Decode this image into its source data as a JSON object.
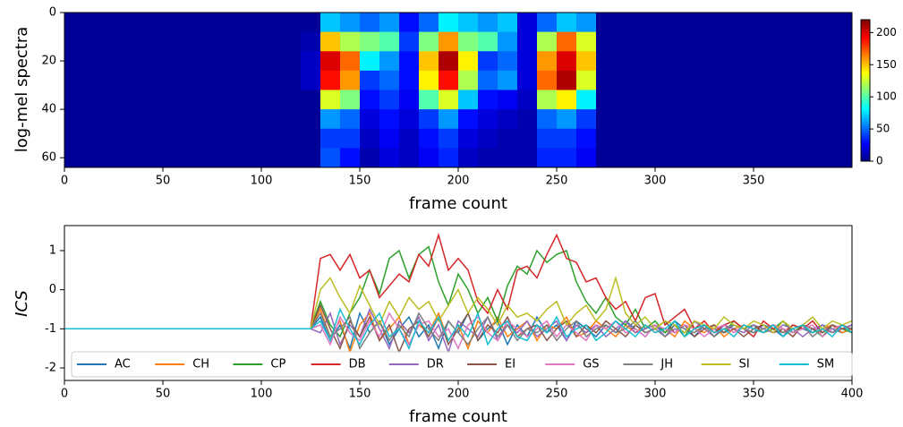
{
  "chart_data": [
    {
      "type": "heatmap",
      "xlabel": "frame count",
      "ylabel": "log-mel spectra",
      "colormap": "jet",
      "xlim": [
        0,
        400
      ],
      "xticks": [
        0,
        50,
        100,
        150,
        200,
        250,
        300,
        350
      ],
      "ylim": [
        64,
        0
      ],
      "yticks": [
        0,
        20,
        40,
        60
      ],
      "clim": [
        0,
        220
      ],
      "cticks": [
        0,
        50,
        100,
        150,
        200
      ],
      "values": [
        [
          5,
          5,
          5,
          5,
          5,
          5,
          5,
          5,
          5,
          5,
          5,
          5,
          5,
          70,
          60,
          50,
          60,
          30,
          50,
          80,
          70,
          60,
          70,
          20,
          50,
          70,
          60,
          5,
          5,
          5,
          5,
          5,
          5,
          5,
          5,
          5,
          5,
          5,
          5,
          5
        ],
        [
          5,
          5,
          5,
          5,
          5,
          5,
          5,
          5,
          5,
          5,
          5,
          5,
          10,
          150,
          120,
          110,
          100,
          40,
          110,
          160,
          110,
          100,
          60,
          20,
          120,
          170,
          130,
          5,
          5,
          5,
          5,
          5,
          5,
          5,
          5,
          5,
          5,
          5,
          5,
          5
        ],
        [
          5,
          5,
          5,
          5,
          5,
          5,
          5,
          5,
          5,
          5,
          5,
          5,
          15,
          200,
          170,
          80,
          60,
          30,
          150,
          210,
          140,
          40,
          50,
          20,
          160,
          200,
          150,
          5,
          5,
          5,
          5,
          5,
          5,
          5,
          5,
          5,
          5,
          5,
          5,
          5
        ],
        [
          5,
          5,
          5,
          5,
          5,
          5,
          5,
          5,
          5,
          5,
          5,
          5,
          15,
          190,
          160,
          40,
          50,
          30,
          140,
          190,
          120,
          50,
          60,
          20,
          170,
          210,
          130,
          5,
          5,
          5,
          5,
          5,
          5,
          5,
          5,
          5,
          5,
          5,
          5,
          5
        ],
        [
          5,
          5,
          5,
          5,
          5,
          5,
          5,
          5,
          5,
          5,
          5,
          5,
          5,
          130,
          110,
          30,
          40,
          25,
          100,
          130,
          70,
          30,
          25,
          15,
          120,
          140,
          80,
          5,
          5,
          5,
          5,
          5,
          5,
          5,
          5,
          5,
          5,
          5,
          5,
          5
        ],
        [
          5,
          5,
          5,
          5,
          5,
          5,
          5,
          5,
          5,
          5,
          5,
          5,
          5,
          60,
          50,
          20,
          30,
          20,
          40,
          60,
          30,
          20,
          15,
          10,
          50,
          60,
          40,
          5,
          5,
          5,
          5,
          5,
          5,
          5,
          5,
          5,
          5,
          5,
          5,
          5
        ],
        [
          5,
          5,
          5,
          5,
          5,
          5,
          5,
          5,
          5,
          5,
          5,
          5,
          5,
          40,
          40,
          15,
          25,
          15,
          30,
          40,
          20,
          15,
          10,
          10,
          40,
          40,
          30,
          5,
          5,
          5,
          5,
          5,
          5,
          5,
          5,
          5,
          5,
          5,
          5,
          5
        ],
        [
          5,
          5,
          5,
          5,
          5,
          5,
          5,
          5,
          5,
          5,
          5,
          5,
          5,
          45,
          30,
          10,
          20,
          15,
          25,
          35,
          15,
          10,
          10,
          10,
          35,
          35,
          25,
          5,
          5,
          5,
          5,
          5,
          5,
          5,
          5,
          5,
          5,
          5,
          5,
          5
        ]
      ]
    },
    {
      "type": "line",
      "xlabel": "frame count",
      "ylabel": "ICS",
      "xlim": [
        0,
        400
      ],
      "xticks": [
        0,
        50,
        100,
        150,
        200,
        250,
        300,
        350,
        400
      ],
      "ylim": [
        -2.32,
        1.64
      ],
      "yticks": [
        -2,
        -1,
        0,
        1
      ],
      "legend": "lower center",
      "x": [
        0,
        125,
        130,
        135,
        140,
        145,
        150,
        155,
        160,
        165,
        170,
        175,
        180,
        185,
        190,
        195,
        200,
        205,
        210,
        215,
        220,
        225,
        230,
        235,
        240,
        245,
        250,
        255,
        260,
        265,
        270,
        275,
        280,
        285,
        290,
        295,
        300,
        305,
        310,
        315,
        320,
        325,
        330,
        335,
        340,
        345,
        350,
        355,
        360,
        365,
        370,
        375,
        380,
        385,
        390,
        395,
        400
      ],
      "series": [
        {
          "name": "AC",
          "color": "#1f77b4",
          "values": [
            -1,
            -1,
            -0.7,
            -1.3,
            -0.9,
            -1.5,
            -0.6,
            -1.1,
            -0.8,
            -1.4,
            -1.0,
            -0.7,
            -1.2,
            -0.9,
            -1.5,
            -0.8,
            -1.1,
            -0.6,
            -1.3,
            -1.0,
            -0.8,
            -1.4,
            -0.9,
            -1.2,
            -0.7,
            -1.1,
            -0.9,
            -1.3,
            -0.8,
            -1.0,
            -1.2,
            -0.9,
            -1.1,
            -0.8,
            -1.0,
            -1.2,
            -0.9,
            -1.1,
            -0.8,
            -1.0,
            -1.2,
            -0.9,
            -1.0,
            -1.1,
            -0.9,
            -1.0,
            -1.1,
            -0.9,
            -1.0,
            -1.2,
            -0.9,
            -1.0,
            -1.1,
            -0.9,
            -1.0,
            -1.1,
            -1.0
          ]
        },
        {
          "name": "CH",
          "color": "#ff7f0e",
          "values": [
            -1,
            -1,
            -0.5,
            -1.2,
            -0.8,
            -1.6,
            -0.9,
            -0.6,
            -1.3,
            -1.0,
            -0.7,
            -1.4,
            -0.9,
            -1.1,
            -0.6,
            -1.3,
            -0.9,
            -1.5,
            -0.8,
            -1.1,
            -0.7,
            -1.2,
            -1.0,
            -0.8,
            -1.3,
            -0.9,
            -1.0,
            -0.7,
            -1.2,
            -1.1,
            -0.8,
            -1.0,
            -1.2,
            -0.9,
            -1.1,
            -0.9,
            -1.1,
            -1.0,
            -1.2,
            -0.8,
            -1.0,
            -1.1,
            -0.9,
            -1.2,
            -1.0,
            -0.9,
            -1.0,
            -1.1,
            -0.9,
            -1.0,
            -1.2,
            -0.9,
            -1.1,
            -1.0,
            -0.9,
            -1.1,
            -1.0
          ]
        },
        {
          "name": "CP",
          "color": "#2ca02c",
          "values": [
            -1,
            -1,
            -0.3,
            -0.9,
            -1.2,
            -0.6,
            -0.2,
            0.5,
            -0.1,
            0.8,
            1.0,
            0.3,
            0.9,
            1.1,
            0.2,
            -0.4,
            0.4,
            0.0,
            -0.6,
            -0.2,
            -0.8,
            0.1,
            0.6,
            0.4,
            1.0,
            0.7,
            0.9,
            1.0,
            0.2,
            -0.3,
            -0.6,
            -0.2,
            -0.7,
            -0.9,
            -0.5,
            -1.0,
            -0.8,
            -1.1,
            -0.9,
            -1.2,
            -0.8,
            -1.0,
            -0.9,
            -1.1,
            -0.8,
            -1.0,
            -0.9,
            -1.1,
            -1.0,
            -0.8,
            -1.1,
            -0.9,
            -1.0,
            -1.2,
            -0.9,
            -1.0,
            -1.1
          ]
        },
        {
          "name": "DB",
          "color": "#d62728",
          "values": [
            -1,
            -1,
            0.8,
            0.9,
            0.5,
            0.9,
            0.3,
            0.5,
            -0.2,
            0.1,
            0.4,
            0.2,
            0.9,
            0.6,
            1.4,
            0.5,
            0.8,
            0.5,
            -0.3,
            -0.6,
            0.0,
            -0.5,
            0.5,
            0.6,
            0.3,
            0.9,
            1.4,
            0.8,
            0.7,
            0.2,
            0.3,
            -0.2,
            -0.5,
            -0.3,
            -0.8,
            -0.2,
            -0.1,
            -0.9,
            -0.7,
            -0.5,
            -1.0,
            -0.8,
            -1.1,
            -0.9,
            -0.8,
            -1.0,
            -1.2,
            -0.8,
            -1.0,
            -1.1,
            -0.9,
            -1.0,
            -0.8,
            -1.1,
            -0.9,
            -1.0,
            -0.9
          ]
        },
        {
          "name": "DR",
          "color": "#9467bd",
          "values": [
            -1,
            -1,
            -1.1,
            -0.6,
            -1.4,
            -0.9,
            -1.2,
            -0.5,
            -1.0,
            -1.5,
            -0.8,
            -1.1,
            -0.7,
            -1.3,
            -0.9,
            -1.6,
            -0.8,
            -1.0,
            -1.2,
            -0.7,
            -1.3,
            -0.9,
            -1.1,
            -0.8,
            -1.2,
            -1.0,
            -0.8,
            -1.3,
            -0.9,
            -1.1,
            -0.9,
            -1.2,
            -1.0,
            -0.8,
            -1.1,
            -1.0,
            -0.9,
            -1.2,
            -1.0,
            -1.1,
            -0.8,
            -1.0,
            -1.2,
            -0.9,
            -1.0,
            -1.1,
            -0.9,
            -1.0,
            -1.1,
            -0.9,
            -1.0,
            -1.2,
            -1.0,
            -0.9,
            -1.1,
            -1.0,
            -0.9
          ]
        },
        {
          "name": "EI",
          "color": "#8c564b",
          "values": [
            -1,
            -1,
            -0.4,
            -1.0,
            -1.5,
            -0.8,
            -1.2,
            -0.7,
            -1.3,
            -0.9,
            -1.6,
            -1.0,
            -0.8,
            -1.2,
            -0.7,
            -1.4,
            -1.0,
            -0.6,
            -1.3,
            -0.9,
            -1.1,
            -0.7,
            -1.2,
            -1.0,
            -0.9,
            -1.3,
            -1.0,
            -0.8,
            -1.2,
            -0.9,
            -1.1,
            -0.8,
            -1.0,
            -1.2,
            -0.9,
            -1.1,
            -1.0,
            -0.8,
            -1.1,
            -0.9,
            -1.2,
            -1.0,
            -0.9,
            -1.1,
            -1.0,
            -1.2,
            -1.0,
            -0.9,
            -1.1,
            -1.0,
            -1.2,
            -0.9,
            -1.0,
            -1.1,
            -0.9,
            -1.0,
            -1.0
          ]
        },
        {
          "name": "GS",
          "color": "#e377c2",
          "values": [
            -1,
            -1,
            -0.9,
            -1.4,
            -0.7,
            -1.1,
            -1.3,
            -0.8,
            -1.2,
            -0.6,
            -1.0,
            -1.4,
            -0.9,
            -0.8,
            -1.2,
            -1.0,
            -1.5,
            -0.9,
            -0.7,
            -1.1,
            -1.3,
            -0.8,
            -1.0,
            -1.2,
            -1.0,
            -0.8,
            -1.2,
            -0.9,
            -1.1,
            -1.3,
            -0.9,
            -1.0,
            -0.8,
            -1.1,
            -1.0,
            -1.2,
            -0.9,
            -1.0,
            -1.1,
            -0.9,
            -1.0,
            -1.2,
            -1.0,
            -0.9,
            -1.1,
            -0.9,
            -1.0,
            -1.1,
            -0.9,
            -1.0,
            -1.1,
            -1.0,
            -0.9,
            -1.2,
            -1.0,
            -0.9,
            -1.1
          ]
        },
        {
          "name": "JH",
          "color": "#7f7f7f",
          "values": [
            -1,
            -1,
            -0.6,
            -1.2,
            -1.0,
            -0.7,
            -1.5,
            -1.1,
            -0.8,
            -1.3,
            -0.9,
            -1.2,
            -0.6,
            -1.0,
            -1.3,
            -0.8,
            -1.1,
            -1.4,
            -1.0,
            -0.7,
            -1.2,
            -0.9,
            -1.3,
            -1.0,
            -1.1,
            -0.9,
            -1.3,
            -1.0,
            -0.8,
            -1.2,
            -1.0,
            -0.9,
            -1.1,
            -1.0,
            -0.8,
            -1.1,
            -1.0,
            -1.2,
            -0.9,
            -1.0,
            -1.1,
            -0.9,
            -1.2,
            -1.0,
            -0.9,
            -1.0,
            -1.1,
            -1.0,
            -0.9,
            -1.1,
            -1.0,
            -0.9,
            -1.2,
            -1.0,
            -1.1,
            -0.9,
            -1.0
          ]
        },
        {
          "name": "SI",
          "color": "#bcbd22",
          "values": [
            -1,
            -1,
            0.0,
            0.3,
            -0.2,
            -0.6,
            0.1,
            -0.4,
            -0.9,
            -0.3,
            -0.7,
            -0.2,
            -0.5,
            -0.3,
            -0.8,
            -0.4,
            0.0,
            -0.6,
            -0.2,
            -0.5,
            -0.9,
            -0.4,
            -0.7,
            -0.6,
            -0.8,
            -0.5,
            -0.3,
            -0.9,
            -0.6,
            -0.4,
            -0.8,
            -0.5,
            0.3,
            -0.6,
            -0.9,
            -0.7,
            -1.0,
            -0.8,
            -0.9,
            -1.1,
            -0.8,
            -0.9,
            -1.0,
            -0.7,
            -0.9,
            -1.0,
            -0.8,
            -0.9,
            -1.1,
            -0.8,
            -1.0,
            -0.9,
            -0.7,
            -1.0,
            -0.8,
            -0.9,
            -0.8
          ]
        },
        {
          "name": "SM",
          "color": "#17becf",
          "values": [
            -1,
            -1,
            -0.8,
            -1.3,
            -0.5,
            -1.0,
            -1.4,
            -0.9,
            -0.6,
            -1.2,
            -1.0,
            -1.5,
            -0.8,
            -1.1,
            -0.7,
            -1.3,
            -0.9,
            -1.2,
            -0.6,
            -1.4,
            -1.0,
            -0.8,
            -1.2,
            -1.3,
            -0.9,
            -1.1,
            -0.7,
            -1.2,
            -1.0,
            -0.9,
            -1.3,
            -1.1,
            -0.8,
            -1.0,
            -1.2,
            -0.9,
            -1.1,
            -1.0,
            -0.8,
            -1.2,
            -1.0,
            -0.9,
            -1.1,
            -1.0,
            -1.2,
            -0.9,
            -1.0,
            -1.1,
            -0.9,
            -1.2,
            -1.0,
            -0.9,
            -1.1,
            -1.0,
            -1.2,
            -0.9,
            -1.1
          ]
        }
      ]
    }
  ]
}
